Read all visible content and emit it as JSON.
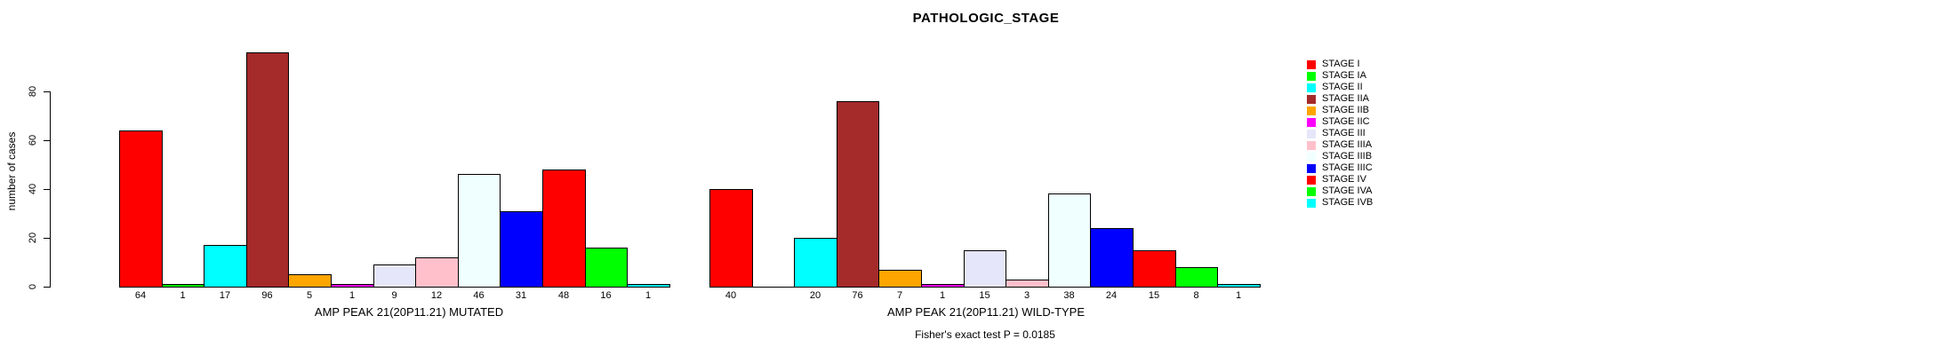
{
  "chart_data": {
    "type": "bar",
    "title": "PATHOLOGIC_STAGE",
    "ylabel": "number of cases",
    "y_ticks": [
      0,
      20,
      40,
      60,
      80
    ],
    "ylim": [
      0,
      97
    ],
    "grid": false,
    "legend_position": "right",
    "bar_border_color": "#000000",
    "categories": [
      "STAGE I",
      "STAGE IA",
      "STAGE II",
      "STAGE IIA",
      "STAGE IIB",
      "STAGE IIC",
      "STAGE III",
      "STAGE IIIA",
      "STAGE IIIB",
      "STAGE IIIC",
      "STAGE IV",
      "STAGE IVA",
      "STAGE IVB"
    ],
    "colors": [
      "#FF0000",
      "#00FF00",
      "#00FFFF",
      "#A52A2A",
      "#FFA500",
      "#FF00FF",
      "#E6E6FA",
      "#FFC0CB",
      "#F0FFFF",
      "#0000FF",
      "#FF0000",
      "#00FF00",
      "#00FFFF"
    ],
    "panels": [
      {
        "name": "MUTATED",
        "xlabel": "AMP PEAK 21(20P11.21) MUTATED",
        "values": [
          64,
          1,
          17,
          96,
          5,
          1,
          9,
          12,
          46,
          31,
          48,
          16,
          1
        ]
      },
      {
        "name": "WILD-TYPE",
        "xlabel": "AMP PEAK 21(20P11.21) WILD-TYPE",
        "values": [
          40,
          null,
          20,
          76,
          7,
          1,
          15,
          3,
          38,
          24,
          15,
          8,
          1
        ]
      }
    ],
    "annotation": "Fisher's exact test P = 0.0185"
  }
}
